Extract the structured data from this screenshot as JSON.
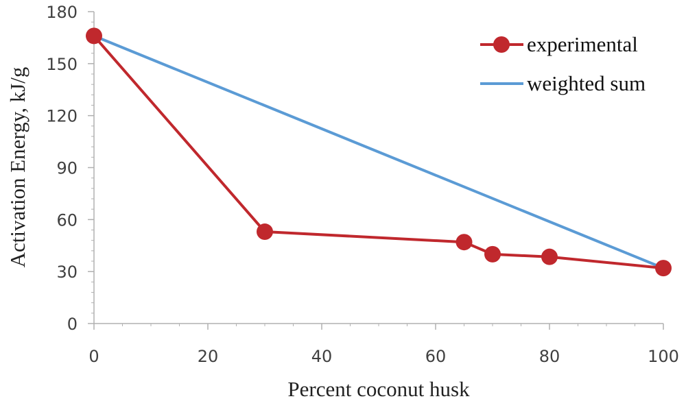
{
  "chart_data": {
    "type": "line",
    "title": "",
    "xlabel": "Percent coconut husk",
    "ylabel": "Activation Energy,  kJ/g",
    "xlim": [
      0,
      100
    ],
    "ylim": [
      0,
      180
    ],
    "x_ticks": [
      0,
      20,
      40,
      60,
      80,
      100
    ],
    "x_minor_step": 5,
    "y_ticks": [
      0,
      30,
      60,
      90,
      120,
      150,
      180
    ],
    "y_minor_step": 6,
    "grid": false,
    "legend_position": "top-right",
    "series": [
      {
        "name": "experimental",
        "color": "#c0282d",
        "marker": "circle",
        "x": [
          0,
          30,
          65,
          70,
          80,
          100
        ],
        "y": [
          166,
          53,
          47,
          40,
          38.5,
          32
        ]
      },
      {
        "name": "weighted sum",
        "color": "#5b9bd5",
        "marker": "none",
        "x": [
          0,
          100
        ],
        "y": [
          166,
          32
        ]
      }
    ]
  }
}
